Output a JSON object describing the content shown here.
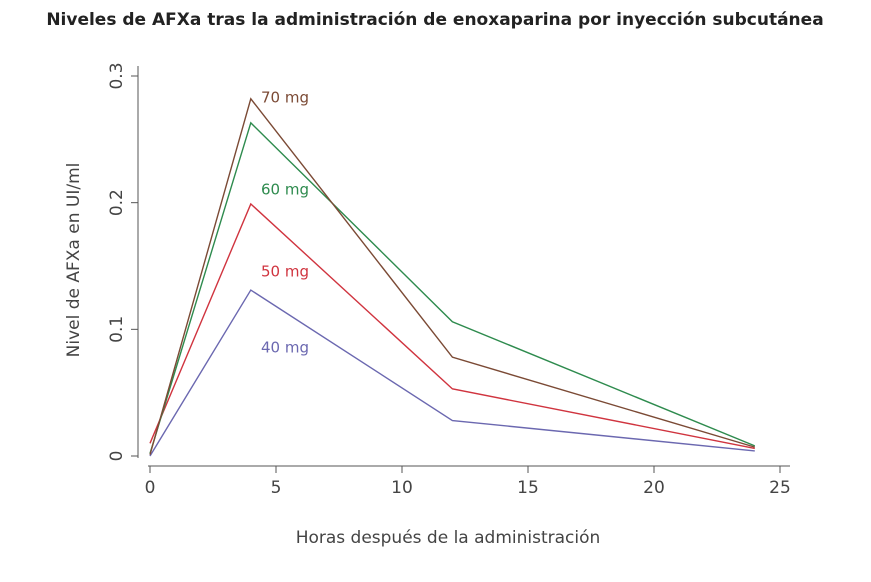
{
  "chart_data": {
    "type": "line",
    "title": "Niveles de AFXa tras la administración de enoxaparina por inyección subcutánea",
    "x_label": "Horas después de la administración",
    "y_label": "Nivel de AFXa en UI/ml",
    "x": [
      0,
      4,
      12,
      24
    ],
    "series": [
      {
        "name": "40 mg",
        "color": "#6b68b0",
        "values": [
          0,
          0.131,
          0.028,
          0.004
        ]
      },
      {
        "name": "50 mg",
        "color": "#d0343f",
        "values": [
          0.01,
          0.199,
          0.053,
          0.006
        ]
      },
      {
        "name": "60 mg",
        "color": "#2e8b4e",
        "values": [
          0.002,
          0.263,
          0.106,
          0.008
        ]
      },
      {
        "name": "70 mg",
        "color": "#7b4a35",
        "values": [
          0.001,
          0.282,
          0.078,
          0.007
        ]
      }
    ],
    "xlim": [
      0,
      25
    ],
    "xticks": [
      0,
      5,
      10,
      15,
      20,
      25
    ],
    "ylim": [
      0,
      0.3
    ],
    "yticks": [
      0,
      0.1,
      0.2,
      0.3
    ]
  }
}
